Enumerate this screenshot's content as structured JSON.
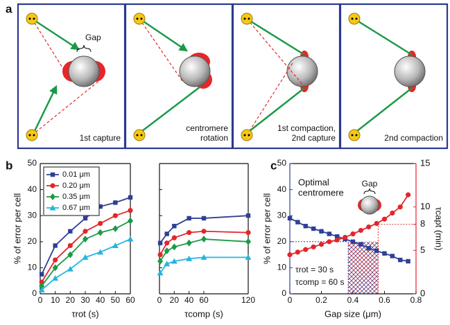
{
  "panel_a": {
    "panel_label": "a",
    "gap_label": "Gap",
    "captions": [
      [
        "1st capture"
      ],
      [
        "centromere",
        "rotation"
      ],
      [
        "1st compaction,",
        "2nd capture"
      ],
      [
        "2nd compaction"
      ]
    ]
  },
  "chart_data": [
    {
      "type": "line",
      "panel_label": "b",
      "xlabel": "τrot (s)",
      "ylabel": "% of error per cell",
      "x": [
        1,
        10,
        20,
        30,
        40,
        50,
        60
      ],
      "xlim": [
        0,
        60
      ],
      "xticks": [
        0,
        10,
        20,
        30,
        40,
        50,
        60
      ],
      "ylim": [
        0,
        50
      ],
      "yticks": [
        0,
        10,
        20,
        30,
        40,
        50
      ],
      "legend": "upper-left",
      "series": [
        {
          "name": "0.01 μm",
          "color": "#2e3f96",
          "marker": "square",
          "values": [
            7.5,
            18.5,
            24,
            29,
            33.5,
            35,
            37
          ]
        },
        {
          "name": "0.20 μm",
          "color": "#e3262b",
          "marker": "circle",
          "values": [
            4.5,
            13,
            18.5,
            24,
            27,
            30,
            32
          ]
        },
        {
          "name": "0.35 μm",
          "color": "#1b9a46",
          "marker": "diamond",
          "values": [
            3,
            10,
            15,
            21,
            23.5,
            25,
            28
          ]
        },
        {
          "name": "0.67 μm",
          "color": "#23b5e0",
          "marker": "triangle",
          "values": [
            1.5,
            6,
            9.5,
            14,
            16,
            18.5,
            21
          ]
        }
      ]
    },
    {
      "type": "line",
      "xlabel": "τcomp (s)",
      "show_ytick_labels": false,
      "x": [
        1,
        10,
        20,
        40,
        60,
        120
      ],
      "xlim": [
        0,
        120
      ],
      "xticks": [
        0,
        20,
        40,
        60,
        120
      ],
      "ylim": [
        0,
        50
      ],
      "yticks": [
        0,
        10,
        20,
        30,
        40,
        50
      ],
      "series": [
        {
          "color": "#2e3f96",
          "marker": "square",
          "values": [
            19.5,
            23,
            26,
            29,
            29,
            30
          ]
        },
        {
          "color": "#e3262b",
          "marker": "circle",
          "values": [
            15,
            19.5,
            21.5,
            23.5,
            24,
            23.5
          ]
        },
        {
          "color": "#1b9a46",
          "marker": "diamond",
          "values": [
            12.5,
            16.5,
            18,
            19.5,
            21,
            20
          ]
        },
        {
          "color": "#23b5e0",
          "marker": "triangle",
          "values": [
            8,
            11.5,
            12.5,
            13.5,
            14,
            14
          ]
        }
      ]
    },
    {
      "type": "line",
      "panel_label": "c",
      "xlabel": "Gap size (μm)",
      "ylabel": "% of error per cell",
      "y2label": "τcapt (min)",
      "ycolor": "#2e3f96",
      "y2color": "#e3262b",
      "x": [
        0,
        0.05,
        0.1,
        0.15,
        0.2,
        0.25,
        0.3,
        0.35,
        0.4,
        0.45,
        0.5,
        0.55,
        0.6,
        0.65,
        0.7,
        0.75
      ],
      "xlim": [
        0,
        0.8
      ],
      "xticks": [
        0,
        0.2,
        0.4,
        0.6,
        0.8
      ],
      "ylim": [
        0,
        50
      ],
      "yticks": [
        0,
        10,
        20,
        30,
        40,
        50
      ],
      "y2lim": [
        0,
        15
      ],
      "y2ticks": [
        0,
        5,
        8,
        10,
        15
      ],
      "ref_lines": {
        "x": [
          0.37,
          0.56
        ],
        "y": 20,
        "y2": 8
      },
      "annotations": {
        "optimal": [
          "Optimal",
          "centromere"
        ],
        "gap": "Gap",
        "params": [
          "τrot = 30 s",
          "τcomp = 60 s"
        ]
      },
      "series": [
        {
          "color": "#2e3f96",
          "marker": "square",
          "values": [
            29,
            27.5,
            26,
            25,
            24,
            23,
            22,
            21,
            20,
            19,
            17.5,
            16.5,
            15.5,
            14.5,
            13,
            12.5
          ]
        },
        {
          "color": "#e3262b",
          "marker": "circle",
          "axis": "y2",
          "values": [
            4.5,
            4.8,
            5.1,
            5.4,
            5.7,
            6,
            6.2,
            6.5,
            6.9,
            7.3,
            7.7,
            8.1,
            8.6,
            9.3,
            10,
            11.4
          ]
        }
      ]
    }
  ]
}
